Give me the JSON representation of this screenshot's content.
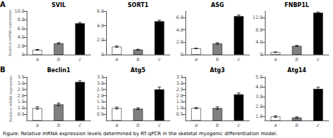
{
  "chart_data": [
    {
      "type": "bar",
      "title": "SVIL",
      "ylabel": "Relative mRNA expression",
      "annotations": [
        "A"
      ],
      "categories": [
        "a",
        "b",
        "c"
      ],
      "values": [
        1.1,
        2.6,
        7.2
      ],
      "errors": [
        0.1,
        0.15,
        0.2
      ],
      "colors": [
        "white",
        "#808080",
        "black"
      ],
      "ylim": [
        0,
        10.0
      ],
      "yticks": [
        0,
        {
          "value": 2.0,
          "label": "2.0"
        },
        {
          "value": 4.0,
          "label": "4.0"
        },
        {
          "value": 6.0,
          "label": "6.0"
        },
        {
          "value": 8.0,
          "label": "8.0"
        },
        {
          "value": 10.0,
          "label": "10.0"
        }
      ],
      "grid": false
    },
    {
      "type": "bar",
      "title": "SORT1",
      "categories": [
        "a",
        "b",
        "c"
      ],
      "values": [
        1.1,
        0.7,
        4.6
      ],
      "errors": [
        0.1,
        0.05,
        0.15
      ],
      "colors": [
        "white",
        "#808080",
        "black"
      ],
      "ylim": [
        0,
        6.0
      ],
      "yticks": [
        0,
        {
          "value": 2.0,
          "label": "2.0"
        },
        {
          "value": 4.0,
          "label": "4.0"
        },
        {
          "value": 6.0,
          "label": "6.0"
        }
      ],
      "grid": false
    },
    {
      "type": "bar",
      "title": "ASG",
      "categories": [
        "a",
        "b",
        "c"
      ],
      "values": [
        1.0,
        1.8,
        6.2
      ],
      "errors": [
        0.05,
        0.12,
        0.18
      ],
      "colors": [
        "white",
        "#808080",
        "black"
      ],
      "ylim": [
        0,
        7.0
      ],
      "yticks": [
        0,
        {
          "value": 2.0,
          "label": "2.0"
        },
        {
          "value": 4.0,
          "label": "4.0"
        },
        {
          "value": 6.0,
          "label": "6.0"
        }
      ],
      "grid": false
    },
    {
      "type": "bar",
      "title": "FNBP1L",
      "categories": [
        "a",
        "b",
        "c"
      ],
      "values": [
        0.8,
        2.8,
        13.5
      ],
      "errors": [
        0.08,
        0.2,
        0.25
      ],
      "colors": [
        "white",
        "#808080",
        "black"
      ],
      "ylim": [
        0,
        14.0
      ],
      "yticks": [
        0,
        {
          "value": 4.0,
          "label": "4.0"
        },
        {
          "value": 8.0,
          "label": "8.0"
        },
        {
          "value": 12.0,
          "label": "12.0"
        }
      ],
      "grid": false
    },
    {
      "type": "bar",
      "title": "Beclin1",
      "ylabel": "Relative mRNA expression",
      "annotations": [
        "B"
      ],
      "categories": [
        "a",
        "b",
        "c"
      ],
      "values": [
        1.0,
        1.3,
        3.1
      ],
      "errors": [
        0.1,
        0.1,
        0.1
      ],
      "colors": [
        "white",
        "#808080",
        "black"
      ],
      "ylim": [
        0,
        3.5
      ],
      "yticks": [
        0.5,
        {
          "value": 1.0,
          "label": "1.0"
        },
        1.5,
        {
          "value": 2.0,
          "label": "2.0"
        },
        2.5,
        {
          "value": 3.0,
          "label": "3.0"
        },
        3.5
      ],
      "grid": false
    },
    {
      "type": "bar",
      "title": "Atg5",
      "categories": [
        "a",
        "b",
        "c"
      ],
      "values": [
        1.0,
        0.95,
        2.5
      ],
      "errors": [
        0.08,
        0.07,
        0.2
      ],
      "colors": [
        "white",
        "#808080",
        "black"
      ],
      "ylim": [
        0,
        3.5
      ],
      "yticks": [
        0.5,
        {
          "value": 1.0,
          "label": "1.0"
        },
        1.5,
        {
          "value": 2.0,
          "label": "2.0"
        },
        2.5,
        {
          "value": 3.0,
          "label": "3.0"
        },
        3.5
      ],
      "grid": false
    },
    {
      "type": "bar",
      "title": "Atg3",
      "categories": [
        "a",
        "b",
        "c"
      ],
      "values": [
        1.0,
        1.0,
        2.1
      ],
      "errors": [
        0.05,
        0.1,
        0.12
      ],
      "colors": [
        "white",
        "#808080",
        "black"
      ],
      "ylim": [
        0,
        3.5
      ],
      "yticks": [
        0.5,
        {
          "value": 1.0,
          "label": "1.0"
        },
        1.5,
        {
          "value": 2.0,
          "label": "2.0"
        },
        2.5,
        {
          "value": 3.0,
          "label": "3.0"
        },
        3.5
      ],
      "grid": false
    },
    {
      "type": "bar",
      "title": "Atg14",
      "categories": [
        "a",
        "b",
        "c"
      ],
      "values": [
        1.0,
        0.9,
        3.8
      ],
      "errors": [
        0.08,
        0.07,
        0.18
      ],
      "colors": [
        "white",
        "#808080",
        "black"
      ],
      "ylim": [
        0.6,
        5.0
      ],
      "yticks": [
        {
          "value": 1.0,
          "label": "1.0"
        },
        {
          "value": 2.0,
          "label": "2.0"
        },
        {
          "value": 3.0,
          "label": "3.0"
        },
        {
          "value": 4.0,
          "label": "4.0"
        },
        {
          "value": 5.0,
          "label": "5.0"
        }
      ],
      "grid": false
    }
  ],
  "caption": "Figure. Relative mRNA expression levels determined by RT-qPCR in the skeletal myogenic differentiation model."
}
